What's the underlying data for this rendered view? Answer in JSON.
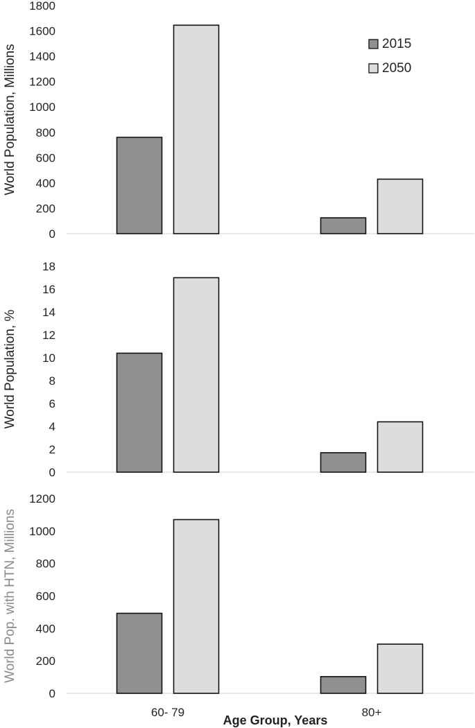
{
  "chart_data": [
    {
      "type": "bar",
      "categories": [
        "60- 79",
        "80+"
      ],
      "ylabel": "World Population, Millions",
      "ylim": [
        0,
        1800
      ],
      "yticks": [
        0,
        200,
        400,
        600,
        800,
        1000,
        1200,
        1400,
        1600,
        1800
      ],
      "grid": false,
      "legend_position": "top-right",
      "series": [
        {
          "name": "2015",
          "values": [
            760,
            125
          ],
          "color": "#8f9092"
        },
        {
          "name": "2050",
          "values": [
            1645,
            430
          ],
          "color": "#dcdddf"
        }
      ]
    },
    {
      "type": "bar",
      "categories": [
        "60- 79",
        "80+"
      ],
      "ylabel": "World Population, %",
      "ylim": [
        0,
        18
      ],
      "yticks": [
        0,
        2,
        4,
        6,
        8,
        10,
        12,
        14,
        16,
        18
      ],
      "grid": false,
      "series": [
        {
          "name": "2015",
          "values": [
            10.4,
            1.7
          ],
          "color": "#8f9092"
        },
        {
          "name": "2050",
          "values": [
            17.0,
            4.4
          ],
          "color": "#dcdddf"
        }
      ]
    },
    {
      "type": "bar",
      "categories": [
        "60- 79",
        "80+"
      ],
      "ylabel": "World Pop. with HTN, Millions",
      "ylabel_color": "#8a8a8a",
      "ylim": [
        0,
        1200
      ],
      "yticks": [
        0,
        200,
        400,
        600,
        800,
        1000,
        1200
      ],
      "grid": false,
      "xlabel": "Age Group, Years",
      "series": [
        {
          "name": "2015",
          "values": [
            493,
            103
          ],
          "color": "#8f9092"
        },
        {
          "name": "2050",
          "values": [
            1070,
            303
          ],
          "color": "#dcdddf"
        }
      ]
    }
  ]
}
